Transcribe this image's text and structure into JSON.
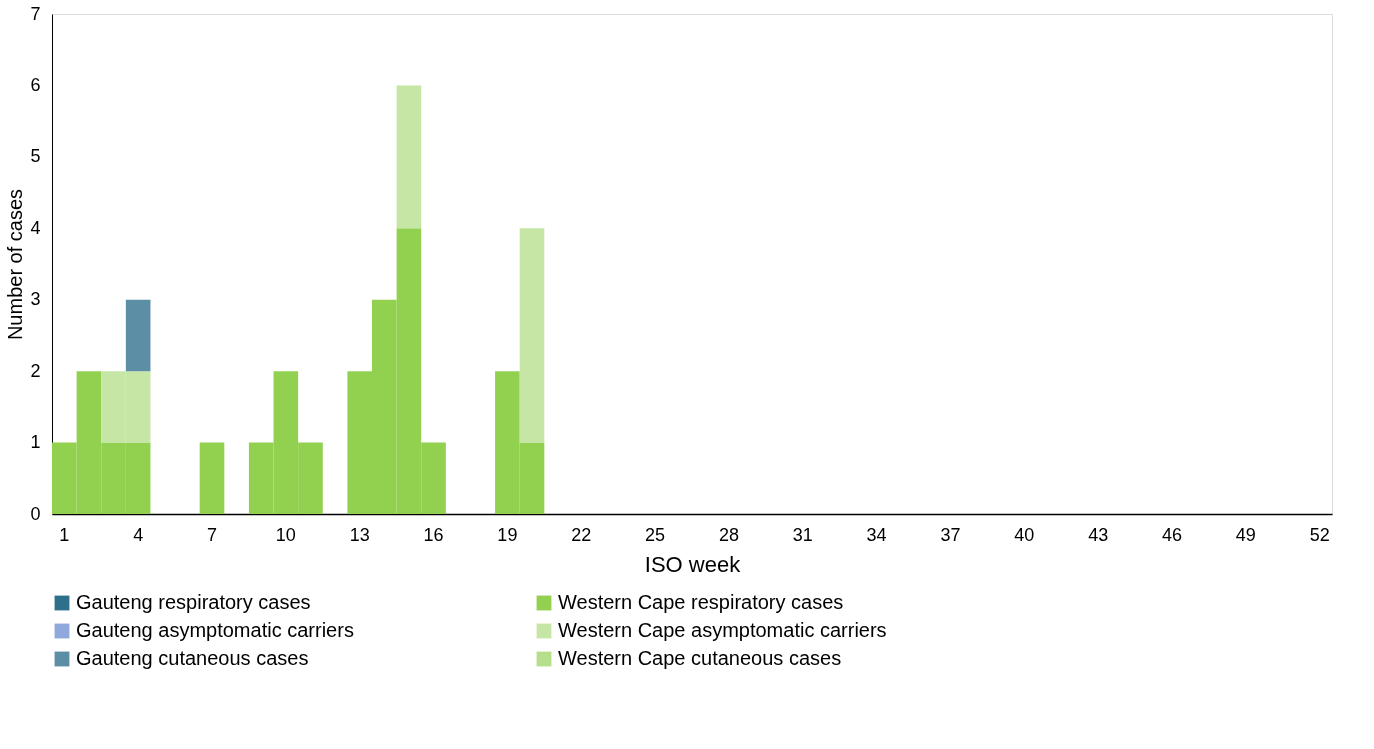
{
  "chart_data": {
    "type": "bar",
    "stacked": true,
    "xlabel": "ISO week",
    "ylabel": "Number of cases",
    "categories": [
      "1",
      null,
      null,
      "4",
      null,
      null,
      "7",
      null,
      null,
      "10",
      null,
      null,
      "13",
      null,
      null,
      "16",
      null,
      null,
      "19",
      null,
      null,
      "22",
      null,
      null,
      "25",
      null,
      null,
      "28",
      null,
      null,
      "31",
      null,
      null,
      "34",
      null,
      null,
      "37",
      null,
      null,
      "40",
      null,
      null,
      "43",
      null,
      null,
      "46",
      null,
      null,
      "49",
      null,
      null,
      "52"
    ],
    "ylim": [
      0,
      7
    ],
    "yticks": [
      0,
      1,
      2,
      3,
      4,
      5,
      6,
      7
    ],
    "grid": false,
    "legend": "bottom",
    "series": [
      {
        "name": "Gauteng respiratory cases",
        "color": "#2e6f8c",
        "values": [
          null,
          null,
          null,
          null,
          null,
          null,
          null,
          null,
          null,
          null,
          null,
          null,
          null,
          null,
          null,
          null,
          null,
          null,
          null,
          null,
          null,
          null,
          null,
          null,
          null,
          null,
          null,
          null,
          null,
          null,
          null,
          null,
          null,
          null,
          null,
          null,
          null,
          null,
          null,
          null,
          null,
          null,
          null,
          null,
          null,
          null,
          null,
          null,
          null,
          null,
          null,
          null
        ]
      },
      {
        "name": "Western Cape respiratory cases",
        "color": "#92d050",
        "values": [
          1,
          2,
          1,
          1,
          null,
          null,
          1,
          null,
          1,
          2,
          1,
          null,
          2,
          3,
          4,
          1,
          null,
          null,
          2,
          1,
          null,
          null,
          null,
          null,
          null,
          null,
          null,
          null,
          null,
          null,
          null,
          null,
          null,
          null,
          null,
          null,
          null,
          null,
          null,
          null,
          null,
          null,
          null,
          null,
          null,
          null,
          null,
          null,
          null,
          null,
          null,
          null
        ]
      },
      {
        "name": "Gauteng asymptomatic carriers",
        "color": "#8fa9dc",
        "values": [
          null,
          null,
          null,
          null,
          null,
          null,
          null,
          null,
          null,
          null,
          null,
          null,
          null,
          null,
          null,
          null,
          null,
          null,
          null,
          null,
          null,
          null,
          null,
          null,
          null,
          null,
          null,
          null,
          null,
          null,
          null,
          null,
          null,
          null,
          null,
          null,
          null,
          null,
          null,
          null,
          null,
          null,
          null,
          null,
          null,
          null,
          null,
          null,
          null,
          null,
          null,
          null
        ]
      },
      {
        "name": "Western Cape asymptomatic carriers",
        "color": "#c5e6a4",
        "values": [
          null,
          null,
          1,
          1,
          null,
          null,
          null,
          null,
          null,
          null,
          null,
          null,
          null,
          null,
          2,
          null,
          null,
          null,
          null,
          3,
          null,
          null,
          null,
          null,
          null,
          null,
          null,
          null,
          null,
          null,
          null,
          null,
          null,
          null,
          null,
          null,
          null,
          null,
          null,
          null,
          null,
          null,
          null,
          null,
          null,
          null,
          null,
          null,
          null,
          null,
          null,
          null
        ]
      },
      {
        "name": "Gauteng cutaneous cases",
        "color": "#5c8ea6",
        "values": [
          null,
          null,
          null,
          1,
          null,
          null,
          null,
          null,
          null,
          null,
          null,
          null,
          null,
          null,
          null,
          null,
          null,
          null,
          null,
          null,
          null,
          null,
          null,
          null,
          null,
          null,
          null,
          null,
          null,
          null,
          null,
          null,
          null,
          null,
          null,
          null,
          null,
          null,
          null,
          null,
          null,
          null,
          null,
          null,
          null,
          null,
          null,
          null,
          null,
          null,
          null,
          null
        ]
      },
      {
        "name": "Western Cape cutaneous cases",
        "color": "#b6df8c",
        "values": [
          null,
          null,
          null,
          null,
          null,
          null,
          null,
          null,
          null,
          null,
          null,
          null,
          null,
          null,
          null,
          null,
          null,
          null,
          null,
          null,
          null,
          null,
          null,
          null,
          null,
          null,
          null,
          null,
          null,
          null,
          null,
          null,
          null,
          null,
          null,
          null,
          null,
          null,
          null,
          null,
          null,
          null,
          null,
          null,
          null,
          null,
          null,
          null,
          null,
          null,
          null,
          null
        ]
      }
    ]
  }
}
